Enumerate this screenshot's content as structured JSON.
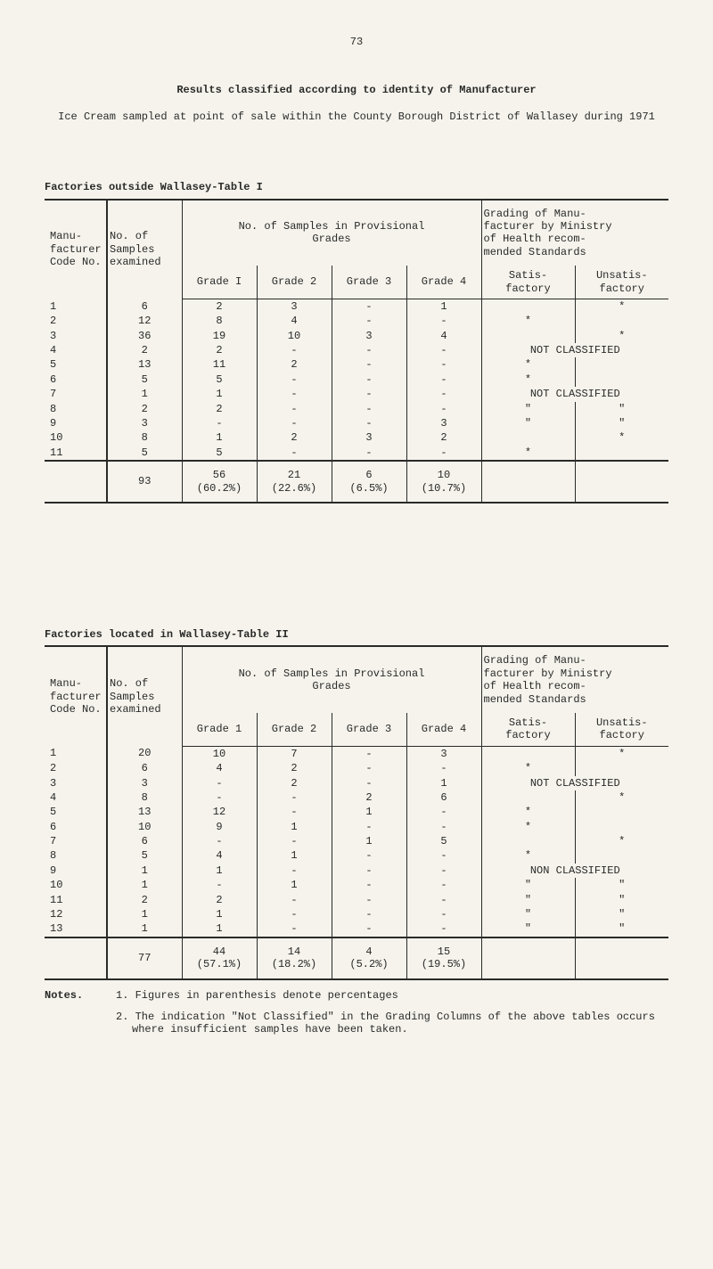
{
  "page_number": "73",
  "main_title": "Results classified according to identity of Manufacturer",
  "sub_title": "Ice Cream sampled at point of sale within the County Borough District of Wallasey during 1971",
  "table1": {
    "caption": "Factories outside Wallasey-Table I",
    "headers": {
      "col1": "Manu-\nfacturer\nCode No.",
      "col2": "No. of\nSamples\nexamined",
      "col_group_mid": "No. of Samples in Provisional\nGrades",
      "col_group_right": "Grading of Manu-\nfacturer by Ministry\nof Health recom-\nmended Standards",
      "g1": "Grade I",
      "g2": "Grade 2",
      "g3": "Grade 3",
      "g4": "Grade 4",
      "sat": "Satis-\nfactory",
      "unsat": "Unsatis-\nfactory"
    },
    "rows": [
      {
        "c": "1",
        "n": "6",
        "g1": "2",
        "g2": "3",
        "g3": "-",
        "g4": "1",
        "s": "",
        "u": "*"
      },
      {
        "c": "2",
        "n": "12",
        "g1": "8",
        "g2": "4",
        "g3": "-",
        "g4": "-",
        "s": "*",
        "u": ""
      },
      {
        "c": "3",
        "n": "36",
        "g1": "19",
        "g2": "10",
        "g3": "3",
        "g4": "4",
        "s": "",
        "u": "*"
      },
      {
        "c": "4",
        "n": "2",
        "g1": "2",
        "g2": "-",
        "g3": "-",
        "g4": "-",
        "note": "NOT CLASSIFIED"
      },
      {
        "c": "5",
        "n": "13",
        "g1": "11",
        "g2": "2",
        "g3": "-",
        "g4": "-",
        "s": "*",
        "u": ""
      },
      {
        "c": "6",
        "n": "5",
        "g1": "5",
        "g2": "-",
        "g3": "-",
        "g4": "-",
        "s": "*",
        "u": ""
      },
      {
        "c": "7",
        "n": "1",
        "g1": "1",
        "g2": "-",
        "g3": "-",
        "g4": "-",
        "note": "NOT CLASSIFIED"
      },
      {
        "c": "8",
        "n": "2",
        "g1": "2",
        "g2": "-",
        "g3": "-",
        "g4": "-",
        "s": "\"",
        "u": "\""
      },
      {
        "c": "9",
        "n": "3",
        "g1": "-",
        "g2": "-",
        "g3": "-",
        "g4": "3",
        "s": "\"",
        "u": "\""
      },
      {
        "c": "10",
        "n": "8",
        "g1": "1",
        "g2": "2",
        "g3": "3",
        "g4": "2",
        "s": "",
        "u": "*"
      },
      {
        "c": "11",
        "n": "5",
        "g1": "5",
        "g2": "-",
        "g3": "-",
        "g4": "-",
        "s": "*",
        "u": ""
      }
    ],
    "totals": {
      "n": "93",
      "g1": "56\n(60.2%)",
      "g2": "21\n(22.6%)",
      "g3": "6\n(6.5%)",
      "g4": "10\n(10.7%)"
    }
  },
  "table2": {
    "caption": "Factories located in Wallasey-Table II",
    "headers": {
      "col1": "Manu-\nfacturer\nCode No.",
      "col2": "No. of\nSamples\nexamined",
      "col_group_mid": "No. of Samples in Provisional\nGrades",
      "col_group_right": "Grading of Manu-\nfacturer by Ministry\nof Health recom-\nmended Standards",
      "g1": "Grade 1",
      "g2": "Grade 2",
      "g3": "Grade 3",
      "g4": "Grade 4",
      "sat": "Satis-\nfactory",
      "unsat": "Unsatis-\nfactory"
    },
    "rows": [
      {
        "c": "1",
        "n": "20",
        "g1": "10",
        "g2": "7",
        "g3": "-",
        "g4": "3",
        "s": "",
        "u": "*"
      },
      {
        "c": "2",
        "n": "6",
        "g1": "4",
        "g2": "2",
        "g3": "-",
        "g4": "-",
        "s": "*",
        "u": ""
      },
      {
        "c": "3",
        "n": "3",
        "g1": "-",
        "g2": "2",
        "g3": "-",
        "g4": "1",
        "note": "NOT CLASSIFIED"
      },
      {
        "c": "4",
        "n": "8",
        "g1": "-",
        "g2": "-",
        "g3": "2",
        "g4": "6",
        "s": "",
        "u": "*"
      },
      {
        "c": "5",
        "n": "13",
        "g1": "12",
        "g2": "-",
        "g3": "1",
        "g4": "-",
        "s": "*",
        "u": ""
      },
      {
        "c": "6",
        "n": "10",
        "g1": "9",
        "g2": "1",
        "g3": "-",
        "g4": "-",
        "s": "*",
        "u": ""
      },
      {
        "c": "7",
        "n": "6",
        "g1": "-",
        "g2": "-",
        "g3": "1",
        "g4": "5",
        "s": "",
        "u": "*"
      },
      {
        "c": "8",
        "n": "5",
        "g1": "4",
        "g2": "1",
        "g3": "-",
        "g4": "-",
        "s": "*",
        "u": ""
      },
      {
        "c": "9",
        "n": "1",
        "g1": "1",
        "g2": "-",
        "g3": "-",
        "g4": "-",
        "note": "NON CLASSIFIED"
      },
      {
        "c": "10",
        "n": "1",
        "g1": "-",
        "g2": "1",
        "g3": "-",
        "g4": "-",
        "s": "\"",
        "u": "\""
      },
      {
        "c": "11",
        "n": "2",
        "g1": "2",
        "g2": "-",
        "g3": "-",
        "g4": "-",
        "s": "\"",
        "u": "\""
      },
      {
        "c": "12",
        "n": "1",
        "g1": "1",
        "g2": "-",
        "g3": "-",
        "g4": "-",
        "s": "\"",
        "u": "\""
      },
      {
        "c": "13",
        "n": "1",
        "g1": "1",
        "g2": "-",
        "g3": "-",
        "g4": "-",
        "s": "\"",
        "u": "\""
      }
    ],
    "totals": {
      "n": "77",
      "g1": "44\n(57.1%)",
      "g2": "14\n(18.2%)",
      "g3": "4\n(5.2%)",
      "g4": "15\n(19.5%)"
    }
  },
  "notes": {
    "label": "Notes.",
    "items": [
      "1. Figures in parenthesis denote percentages",
      "2. The indication \"Not Classified\" in the Grading Columns of the above tables occurs where insufficient samples have been taken."
    ]
  }
}
